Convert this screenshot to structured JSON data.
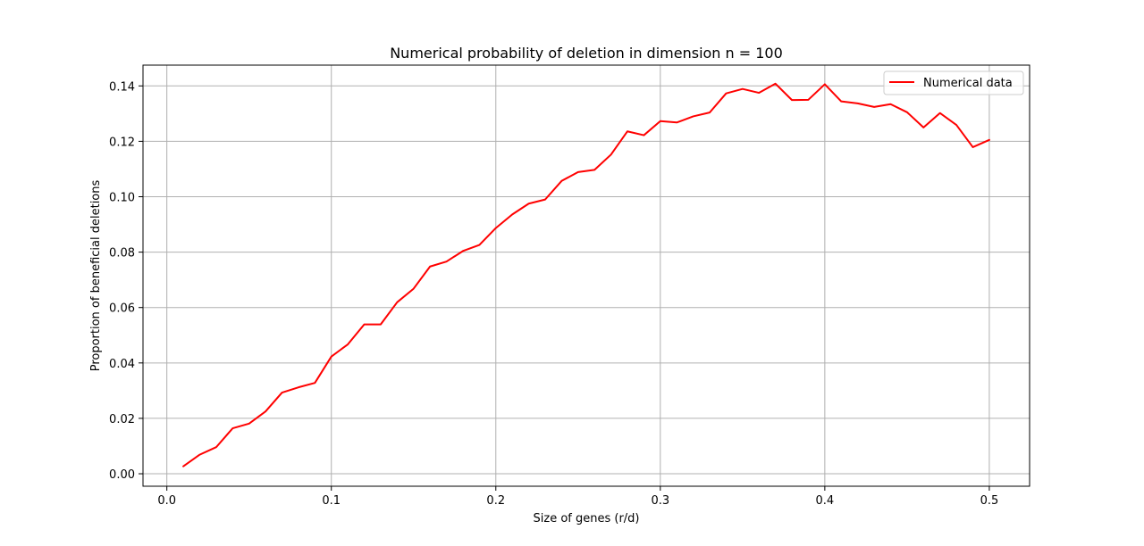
{
  "chart_data": {
    "type": "line",
    "title": "Numerical probability of deletion in dimension n = 100",
    "xlabel": "Size of genes (r/d)",
    "ylabel": "Proportion of beneficial deletions",
    "xlim": [
      -0.0145,
      0.5245
    ],
    "ylim": [
      -0.0045,
      0.1475
    ],
    "xticks": [
      0.0,
      0.1,
      0.2,
      0.3,
      0.4,
      0.5
    ],
    "xtick_labels": [
      "0.0",
      "0.1",
      "0.2",
      "0.3",
      "0.4",
      "0.5"
    ],
    "yticks": [
      0.0,
      0.02,
      0.04,
      0.06,
      0.08,
      0.1,
      0.12,
      0.14
    ],
    "ytick_labels": [
      "0.00",
      "0.02",
      "0.04",
      "0.06",
      "0.08",
      "0.10",
      "0.12",
      "0.14"
    ],
    "grid": true,
    "legend_position": "top-right",
    "series": [
      {
        "name": "Numerical data",
        "color": "#ff0000",
        "x": [
          0.01,
          0.02,
          0.03,
          0.04,
          0.05,
          0.06,
          0.07,
          0.08,
          0.09,
          0.1,
          0.11,
          0.12,
          0.13,
          0.14,
          0.15,
          0.16,
          0.17,
          0.18,
          0.19,
          0.2,
          0.21,
          0.22,
          0.23,
          0.24,
          0.25,
          0.26,
          0.27,
          0.28,
          0.29,
          0.3,
          0.31,
          0.32,
          0.33,
          0.34,
          0.35,
          0.36,
          0.37,
          0.38,
          0.39,
          0.4,
          0.41,
          0.42,
          0.43,
          0.44,
          0.45,
          0.46,
          0.47,
          0.48,
          0.49,
          0.5
        ],
        "y": [
          0.0027,
          0.0069,
          0.0096,
          0.0164,
          0.0181,
          0.0225,
          0.0293,
          0.0312,
          0.0328,
          0.0423,
          0.0467,
          0.0539,
          0.0539,
          0.0619,
          0.0668,
          0.0748,
          0.0766,
          0.0804,
          0.0826,
          0.0887,
          0.0936,
          0.0975,
          0.099,
          0.1057,
          0.1089,
          0.1097,
          0.1152,
          0.1236,
          0.1222,
          0.1273,
          0.1268,
          0.129,
          0.1304,
          0.1373,
          0.1389,
          0.1375,
          0.1408,
          0.1349,
          0.135,
          0.1406,
          0.1344,
          0.1337,
          0.1324,
          0.1334,
          0.1305,
          0.125,
          0.1302,
          0.1259,
          0.1179,
          0.1205
        ]
      }
    ]
  }
}
